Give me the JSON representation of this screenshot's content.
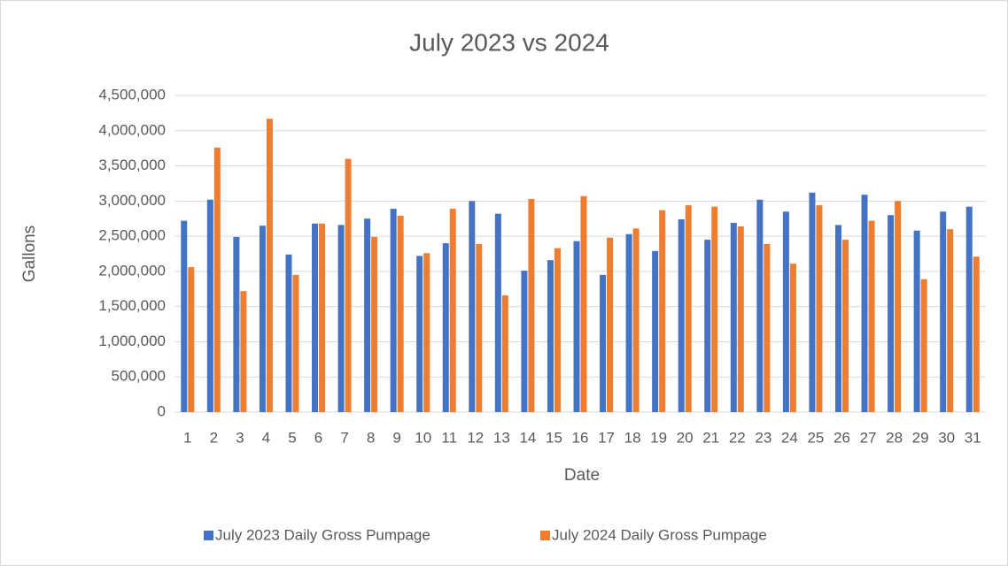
{
  "chart_data": {
    "type": "bar",
    "title": "July 2023 vs 2024",
    "x_label": "Date",
    "y_label": "Gallons",
    "categories": [
      "1",
      "2",
      "3",
      "4",
      "5",
      "6",
      "7",
      "8",
      "9",
      "10",
      "11",
      "12",
      "13",
      "14",
      "15",
      "16",
      "17",
      "18",
      "19",
      "20",
      "21",
      "22",
      "23",
      "24",
      "25",
      "26",
      "27",
      "28",
      "29",
      "30",
      "31"
    ],
    "series": [
      {
        "name": "July 2023 Daily Gross Pumpage",
        "color": "#4472c4",
        "values": [
          2720000,
          3020000,
          2490000,
          2650000,
          2240000,
          2680000,
          2660000,
          2750000,
          2890000,
          2220000,
          2400000,
          3000000,
          2820000,
          2010000,
          2160000,
          2430000,
          1950000,
          2530000,
          2290000,
          2740000,
          2450000,
          2690000,
          3020000,
          2850000,
          3120000,
          2660000,
          3090000,
          2800000,
          2580000,
          2850000,
          2920000
        ]
      },
      {
        "name": "July 2024 Daily Gross Pumpage",
        "color": "#ed7d31",
        "values": [
          2060000,
          3760000,
          1720000,
          4170000,
          1950000,
          2680000,
          3600000,
          2490000,
          2790000,
          2260000,
          2890000,
          2390000,
          1660000,
          3030000,
          2330000,
          3070000,
          2480000,
          2610000,
          2870000,
          2940000,
          2920000,
          2640000,
          2390000,
          2110000,
          2940000,
          2450000,
          2720000,
          3000000,
          1890000,
          2600000,
          2210000
        ]
      }
    ],
    "ylim": [
      0,
      4500000
    ],
    "yticks": [
      0,
      {
        "value": 500000,
        "label": "500,000"
      },
      {
        "value": 1000000,
        "label": "1,000,000"
      },
      {
        "value": 1500000,
        "label": "1,500,000"
      },
      {
        "value": 2000000,
        "label": "2,000,000"
      },
      {
        "value": 2500000,
        "label": "2,500,000"
      },
      {
        "value": 3000000,
        "label": "3,000,000"
      },
      {
        "value": 3500000,
        "label": "3,500,000"
      },
      {
        "value": 4000000,
        "label": "4,000,000"
      },
      {
        "value": 4500000,
        "label": "4,500,000"
      }
    ],
    "grid": true,
    "legend": "bottom"
  }
}
